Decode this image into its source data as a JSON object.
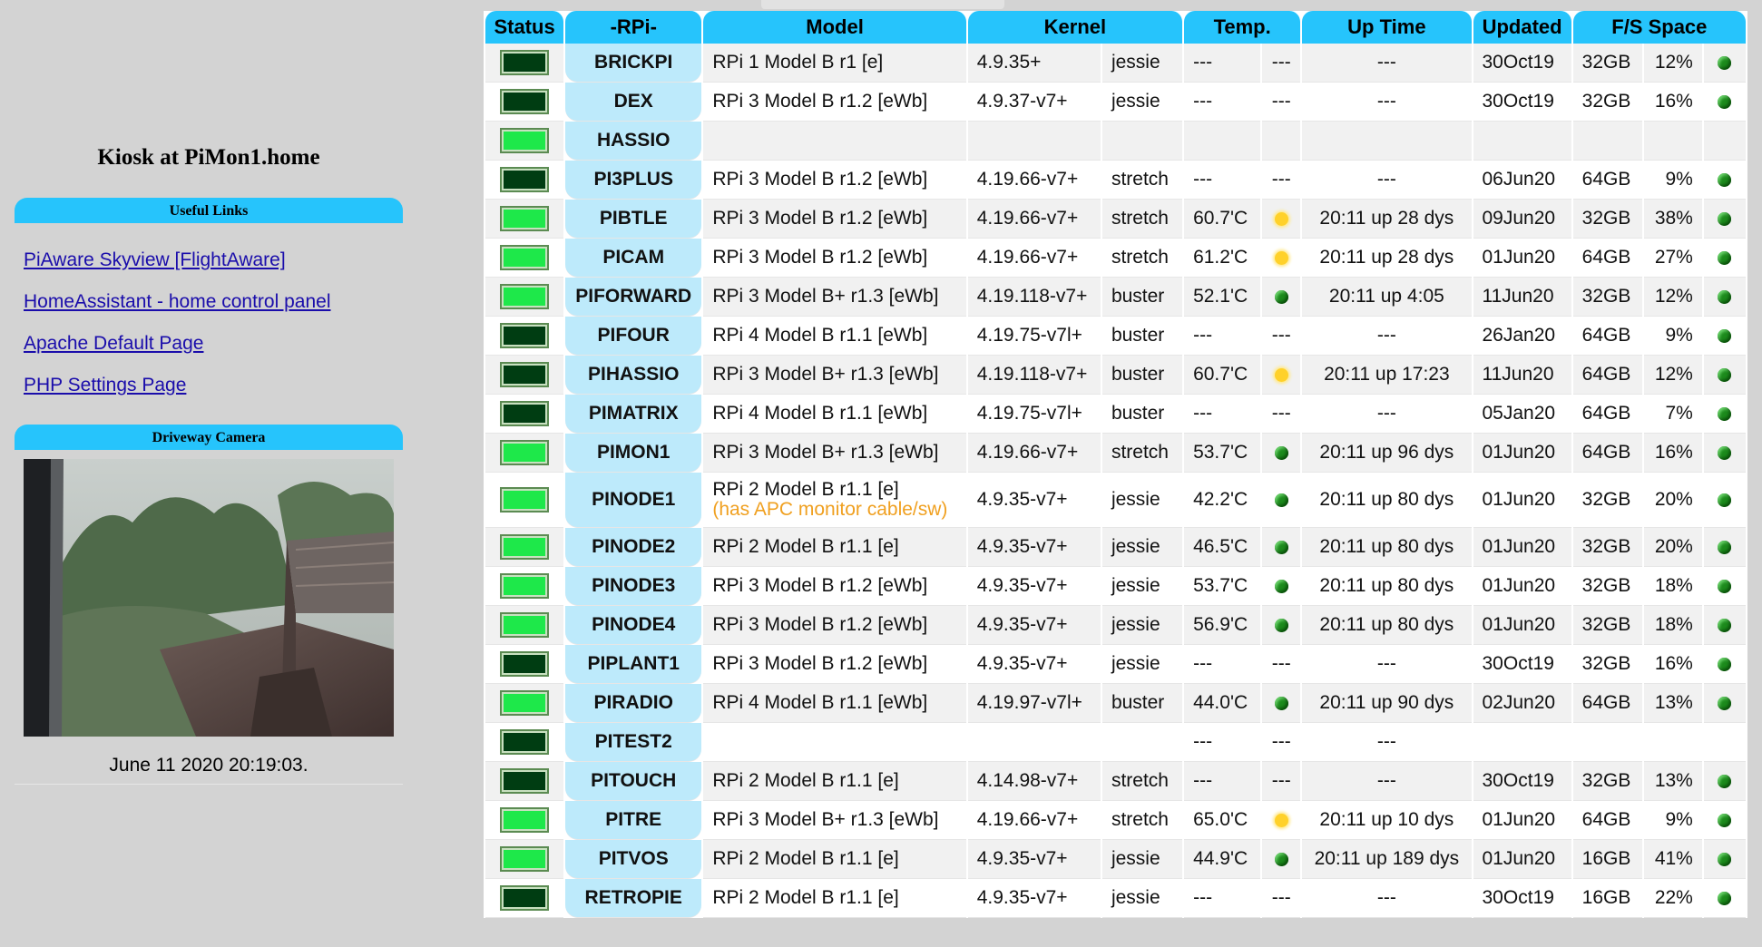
{
  "page_title": "Kiosk at PiMon1.home",
  "useful_links": {
    "header": "Useful Links",
    "items": [
      "PiAware Skyview [FlightAware]",
      "HomeAssistant - home control panel",
      "Apache Default Page",
      "PHP Settings Page"
    ]
  },
  "camera": {
    "header": "Driveway Camera",
    "timestamp": "June 11 2020 20:19:03."
  },
  "table": {
    "headers": [
      "Status",
      "-RPi-",
      "Model",
      "Kernel",
      "Temp.",
      "Up Time",
      "Updated",
      "F/S Space"
    ],
    "rows": [
      {
        "status": "off",
        "name": "BRICKPI",
        "model": "RPi 1 Model B r1 [e]",
        "note": "",
        "kernel": "4.9.35+",
        "os": "jessie",
        "temp": "---",
        "temp_ind": "---",
        "uptime": "---",
        "updated": "30Oct19",
        "size": "32GB",
        "pct": "12%",
        "fs_ind": "green"
      },
      {
        "status": "off",
        "name": "DEX",
        "model": "RPi 3 Model B r1.2 [eWb]",
        "note": "",
        "kernel": "4.9.37-v7+",
        "os": "jessie",
        "temp": "---",
        "temp_ind": "---",
        "uptime": "---",
        "updated": "30Oct19",
        "size": "32GB",
        "pct": "16%",
        "fs_ind": "green"
      },
      {
        "status": "on",
        "name": "HASSIO",
        "model": "",
        "note": "",
        "kernel": "",
        "os": "",
        "temp": "",
        "temp_ind": "",
        "uptime": "",
        "updated": "",
        "size": "",
        "pct": "",
        "fs_ind": ""
      },
      {
        "status": "off",
        "name": "PI3PLUS",
        "model": "RPi 3 Model B r1.2 [eWb]",
        "note": "",
        "kernel": "4.19.66-v7+",
        "os": "stretch",
        "temp": "---",
        "temp_ind": "---",
        "uptime": "---",
        "updated": "06Jun20",
        "size": "64GB",
        "pct": "9%",
        "fs_ind": "green"
      },
      {
        "status": "on",
        "name": "PIBTLE",
        "model": "RPi 3 Model B r1.2 [eWb]",
        "note": "",
        "kernel": "4.19.66-v7+",
        "os": "stretch",
        "temp": "60.7'C",
        "temp_ind": "yellow",
        "uptime": "20:11 up 28 dys",
        "updated": "09Jun20",
        "size": "32GB",
        "pct": "38%",
        "fs_ind": "green"
      },
      {
        "status": "on",
        "name": "PICAM",
        "model": "RPi 3 Model B r1.2 [eWb]",
        "note": "",
        "kernel": "4.19.66-v7+",
        "os": "stretch",
        "temp": "61.2'C",
        "temp_ind": "yellow",
        "uptime": "20:11 up 28 dys",
        "updated": "01Jun20",
        "size": "64GB",
        "pct": "27%",
        "fs_ind": "green"
      },
      {
        "status": "on",
        "name": "PIFORWARD",
        "model": "RPi 3 Model B+ r1.3 [eWb]",
        "note": "",
        "kernel": "4.19.118-v7+",
        "os": "buster",
        "temp": "52.1'C",
        "temp_ind": "green",
        "uptime": "20:11 up 4:05",
        "updated": "11Jun20",
        "size": "32GB",
        "pct": "12%",
        "fs_ind": "green"
      },
      {
        "status": "off",
        "name": "PIFOUR",
        "model": "RPi 4 Model B r1.1 [eWb]",
        "note": "",
        "kernel": "4.19.75-v7l+",
        "os": "buster",
        "temp": "---",
        "temp_ind": "---",
        "uptime": "---",
        "updated": "26Jan20",
        "size": "64GB",
        "pct": "9%",
        "fs_ind": "green"
      },
      {
        "status": "off",
        "name": "PIHASSIO",
        "model": "RPi 3 Model B+ r1.3 [eWb]",
        "note": "",
        "kernel": "4.19.118-v7+",
        "os": "buster",
        "temp": "60.7'C",
        "temp_ind": "yellow",
        "uptime": "20:11 up 17:23",
        "updated": "11Jun20",
        "size": "64GB",
        "pct": "12%",
        "fs_ind": "green"
      },
      {
        "status": "off",
        "name": "PIMATRIX",
        "model": "RPi 4 Model B r1.1 [eWb]",
        "note": "",
        "kernel": "4.19.75-v7l+",
        "os": "buster",
        "temp": "---",
        "temp_ind": "---",
        "uptime": "---",
        "updated": "05Jan20",
        "size": "64GB",
        "pct": "7%",
        "fs_ind": "green"
      },
      {
        "status": "on",
        "name": "PIMON1",
        "model": "RPi 3 Model B+ r1.3 [eWb]",
        "note": "",
        "kernel": "4.19.66-v7+",
        "os": "stretch",
        "temp": "53.7'C",
        "temp_ind": "green",
        "uptime": "20:11 up 96 dys",
        "updated": "01Jun20",
        "size": "64GB",
        "pct": "16%",
        "fs_ind": "green"
      },
      {
        "status": "on",
        "name": "PINODE1",
        "model": "RPi 2 Model B r1.1 [e]",
        "note": "(has APC monitor cable/sw)",
        "kernel": "4.9.35-v7+",
        "os": "jessie",
        "temp": "42.2'C",
        "temp_ind": "green",
        "uptime": "20:11 up 80 dys",
        "updated": "01Jun20",
        "size": "32GB",
        "pct": "20%",
        "fs_ind": "green"
      },
      {
        "status": "on",
        "name": "PINODE2",
        "model": "RPi 2 Model B r1.1 [e]",
        "note": "",
        "kernel": "4.9.35-v7+",
        "os": "jessie",
        "temp": "46.5'C",
        "temp_ind": "green",
        "uptime": "20:11 up 80 dys",
        "updated": "01Jun20",
        "size": "32GB",
        "pct": "20%",
        "fs_ind": "green"
      },
      {
        "status": "on",
        "name": "PINODE3",
        "model": "RPi 3 Model B r1.2 [eWb]",
        "note": "",
        "kernel": "4.9.35-v7+",
        "os": "jessie",
        "temp": "53.7'C",
        "temp_ind": "green",
        "uptime": "20:11 up 80 dys",
        "updated": "01Jun20",
        "size": "32GB",
        "pct": "18%",
        "fs_ind": "green"
      },
      {
        "status": "on",
        "name": "PINODE4",
        "model": "RPi 3 Model B r1.2 [eWb]",
        "note": "",
        "kernel": "4.9.35-v7+",
        "os": "jessie",
        "temp": "56.9'C",
        "temp_ind": "green",
        "uptime": "20:11 up 80 dys",
        "updated": "01Jun20",
        "size": "32GB",
        "pct": "18%",
        "fs_ind": "green"
      },
      {
        "status": "off",
        "name": "PIPLANT1",
        "model": "RPi 3 Model B r1.2 [eWb]",
        "note": "",
        "kernel": "4.9.35-v7+",
        "os": "jessie",
        "temp": "---",
        "temp_ind": "---",
        "uptime": "---",
        "updated": "30Oct19",
        "size": "32GB",
        "pct": "16%",
        "fs_ind": "green"
      },
      {
        "status": "on",
        "name": "PIRADIO",
        "model": "RPi 4 Model B r1.1 [eWb]",
        "note": "",
        "kernel": "4.19.97-v7l+",
        "os": "buster",
        "temp": "44.0'C",
        "temp_ind": "green",
        "uptime": "20:11 up 90 dys",
        "updated": "02Jun20",
        "size": "64GB",
        "pct": "13%",
        "fs_ind": "green"
      },
      {
        "status": "off",
        "name": "PITEST2",
        "model": "",
        "note": "",
        "kernel": "",
        "os": "",
        "temp": "---",
        "temp_ind": "---",
        "uptime": "---",
        "updated": "",
        "size": "",
        "pct": "",
        "fs_ind": ""
      },
      {
        "status": "off",
        "name": "PITOUCH",
        "model": "RPi 2 Model B r1.1 [e]",
        "note": "",
        "kernel": "4.14.98-v7+",
        "os": "stretch",
        "temp": "---",
        "temp_ind": "---",
        "uptime": "---",
        "updated": "30Oct19",
        "size": "32GB",
        "pct": "13%",
        "fs_ind": "green"
      },
      {
        "status": "on",
        "name": "PITRE",
        "model": "RPi 3 Model B+ r1.3 [eWb]",
        "note": "",
        "kernel": "4.19.66-v7+",
        "os": "stretch",
        "temp": "65.0'C",
        "temp_ind": "yellow",
        "uptime": "20:11 up 10 dys",
        "updated": "01Jun20",
        "size": "64GB",
        "pct": "9%",
        "fs_ind": "green"
      },
      {
        "status": "on",
        "name": "PITVOS",
        "model": "RPi 2 Model B r1.1 [e]",
        "note": "",
        "kernel": "4.9.35-v7+",
        "os": "jessie",
        "temp": "44.9'C",
        "temp_ind": "green",
        "uptime": "20:11 up 189 dys",
        "updated": "01Jun20",
        "size": "16GB",
        "pct": "41%",
        "fs_ind": "green"
      },
      {
        "status": "off",
        "name": "RETROPIE",
        "model": "RPi 2 Model B r1.1 [e]",
        "note": "",
        "kernel": "4.9.35-v7+",
        "os": "jessie",
        "temp": "---",
        "temp_ind": "---",
        "uptime": "---",
        "updated": "30Oct19",
        "size": "16GB",
        "pct": "22%",
        "fs_ind": "green"
      }
    ]
  },
  "colors": {
    "header_blue": "#26c4fc",
    "rpi_cell": "#bdeafb",
    "led_on": "#1ee84a",
    "led_off": "#003d12",
    "link": "#1a0dab",
    "note": "#f0a020"
  }
}
